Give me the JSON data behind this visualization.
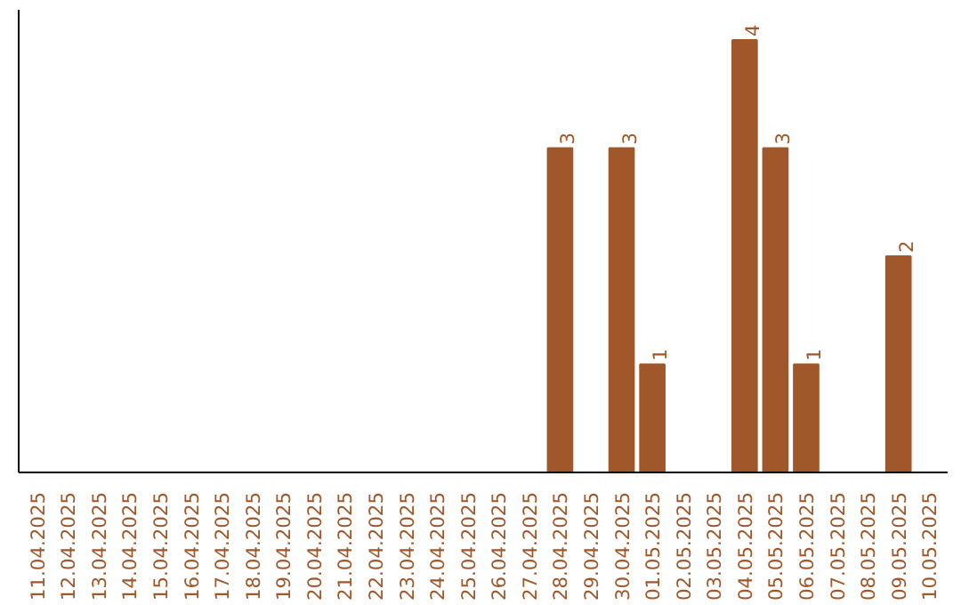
{
  "chart_data": {
    "type": "bar",
    "categories": [
      "11.04.2025",
      "12.04.2025",
      "13.04.2025",
      "14.04.2025",
      "15.04.2025",
      "16.04.2025",
      "17.04.2025",
      "18.04.2025",
      "19.04.2025",
      "20.04.2025",
      "21.04.2025",
      "22.04.2025",
      "23.04.2025",
      "24.04.2025",
      "25.04.2025",
      "26.04.2025",
      "27.04.2025",
      "28.04.2025",
      "29.04.2025",
      "30.04.2025",
      "01.05.2025",
      "02.05.2025",
      "03.05.2025",
      "04.05.2025",
      "05.05.2025",
      "06.05.2025",
      "07.05.2025",
      "08.05.2025",
      "09.05.2025",
      "10.05.2025"
    ],
    "values": [
      null,
      null,
      null,
      null,
      null,
      null,
      null,
      null,
      null,
      null,
      null,
      null,
      null,
      null,
      null,
      null,
      null,
      3,
      null,
      3,
      1,
      null,
      null,
      4,
      3,
      1,
      null,
      null,
      2,
      null
    ],
    "color": "#a0572a",
    "value_labels": [
      null,
      null,
      null,
      null,
      null,
      null,
      null,
      null,
      null,
      null,
      null,
      null,
      null,
      null,
      null,
      null,
      null,
      "3",
      null,
      "3",
      "1",
      null,
      null,
      "4",
      "3",
      "1",
      null,
      null,
      "2",
      null
    ],
    "grid": false,
    "tick_labels": "x"
  }
}
